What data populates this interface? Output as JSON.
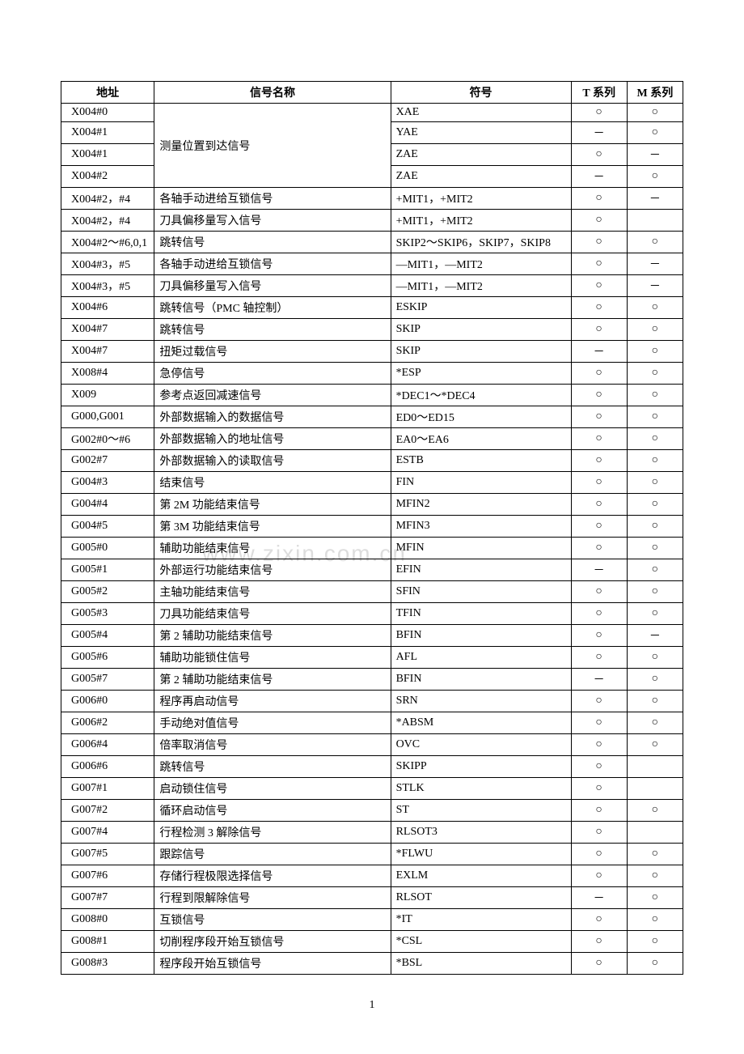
{
  "headers": {
    "addr": "地址",
    "name": "信号名称",
    "symbol": "符号",
    "t": "T 系列",
    "m": "M 系列"
  },
  "watermark": "www.zixin.com.cn",
  "page_number": "1",
  "marks": {
    "circle": "○",
    "dash": "－",
    "blank": ""
  },
  "rows": [
    {
      "addr": "X004#0",
      "name": null,
      "sym": "XAE",
      "t": "circle",
      "m": "circle"
    },
    {
      "addr": "X004#1",
      "name": null,
      "sym": "YAE",
      "t": "dash",
      "m": "circle",
      "name_rowspan": 4,
      "name_text": "测量位置到达信号"
    },
    {
      "addr": "X004#1",
      "name": null,
      "sym": "ZAE",
      "t": "circle",
      "m": "dash"
    },
    {
      "addr": "X004#2",
      "name": null,
      "sym": "ZAE",
      "t": "dash",
      "m": "circle"
    },
    {
      "addr": "X004#2，#4",
      "name": "各轴手动进给互锁信号",
      "sym": "+MIT1，+MIT2",
      "t": "circle",
      "m": "dash"
    },
    {
      "addr": "X004#2，#4",
      "name": "刀具偏移量写入信号",
      "sym": "+MIT1，+MIT2",
      "t": "circle",
      "m": "blank"
    },
    {
      "addr": "X004#2～#6,0,1",
      "name": "跳转信号",
      "sym": "SKIP2～SKIP6，SKIP7，SKIP8",
      "t": "circle",
      "m": "circle"
    },
    {
      "addr": "X004#3，#5",
      "name": "各轴手动进给互锁信号",
      "sym": "—MIT1，—MIT2",
      "t": "circle",
      "m": "dash"
    },
    {
      "addr": "X004#3，#5",
      "name": "刀具偏移量写入信号",
      "sym": "—MIT1，—MIT2",
      "t": "circle",
      "m": "dash"
    },
    {
      "addr": "X004#6",
      "name": "跳转信号（PMC 轴控制）",
      "sym": "ESKIP",
      "t": "circle",
      "m": "circle"
    },
    {
      "addr": "X004#7",
      "name": "跳转信号",
      "sym": "SKIP",
      "t": "circle",
      "m": "circle"
    },
    {
      "addr": "X004#7",
      "name": "扭矩过载信号",
      "sym": "SKIP",
      "t": "dash",
      "m": "circle"
    },
    {
      "addr": "X008#4",
      "name": "急停信号",
      "sym": "*ESP",
      "t": "circle",
      "m": "circle"
    },
    {
      "addr": "X009",
      "name": "参考点返回减速信号",
      "sym": "*DEC1～*DEC4",
      "t": "circle",
      "m": "circle"
    },
    {
      "addr": "G000,G001",
      "name": "外部数据输入的数据信号",
      "sym": "ED0～ED15",
      "t": "circle",
      "m": "circle"
    },
    {
      "addr": "G002#0～#6",
      "name": "外部数据输入的地址信号",
      "sym": "EA0～EA6",
      "t": "circle",
      "m": "circle"
    },
    {
      "addr": "G002#7",
      "name": "外部数据输入的读取信号",
      "sym": "ESTB",
      "t": "circle",
      "m": "circle"
    },
    {
      "addr": "G004#3",
      "name": "结束信号",
      "sym": "FIN",
      "t": "circle",
      "m": "circle"
    },
    {
      "addr": "G004#4",
      "name": "第 2M 功能结束信号",
      "sym": "MFIN2",
      "t": "circle",
      "m": "circle"
    },
    {
      "addr": "G004#5",
      "name": "第 3M 功能结束信号",
      "sym": "MFIN3",
      "t": "circle",
      "m": "circle"
    },
    {
      "addr": "G005#0",
      "name": "辅助功能结束信号",
      "sym": "MFIN",
      "t": "circle",
      "m": "circle"
    },
    {
      "addr": "G005#1",
      "name": "外部运行功能结束信号",
      "sym": "EFIN",
      "t": "dash",
      "m": "circle"
    },
    {
      "addr": "G005#2",
      "name": "主轴功能结束信号",
      "sym": "SFIN",
      "t": "circle",
      "m": "circle"
    },
    {
      "addr": "G005#3",
      "name": "刀具功能结束信号",
      "sym": "TFIN",
      "t": "circle",
      "m": "circle"
    },
    {
      "addr": "G005#4",
      "name": "第 2 辅助功能结束信号",
      "sym": "BFIN",
      "t": "circle",
      "m": "dash"
    },
    {
      "addr": "G005#6",
      "name": "辅助功能锁住信号",
      "sym": "AFL",
      "t": "circle",
      "m": "circle"
    },
    {
      "addr": "G005#7",
      "name": "第 2 辅助功能结束信号",
      "sym": "BFIN",
      "t": "dash",
      "m": "circle"
    },
    {
      "addr": "G006#0",
      "name": "程序再启动信号",
      "sym": "SRN",
      "t": "circle",
      "m": "circle"
    },
    {
      "addr": "G006#2",
      "name": "手动绝对值信号",
      "sym": "*ABSM",
      "t": "circle",
      "m": "circle"
    },
    {
      "addr": "G006#4",
      "name": "倍率取消信号",
      "sym": "OVC",
      "t": "circle",
      "m": "circle"
    },
    {
      "addr": "G006#6",
      "name": "跳转信号",
      "sym": "SKIPP",
      "t": "circle",
      "m": "blank"
    },
    {
      "addr": "G007#1",
      "name": "启动锁住信号",
      "sym": "STLK",
      "t": "circle",
      "m": "blank"
    },
    {
      "addr": "G007#2",
      "name": "循环启动信号",
      "sym": "ST",
      "t": "circle",
      "m": "circle"
    },
    {
      "addr": "G007#4",
      "name": "行程检测 3 解除信号",
      "sym": "RLSOT3",
      "t": "circle",
      "m": "blank"
    },
    {
      "addr": "G007#5",
      "name": "跟踪信号",
      "sym": "*FLWU",
      "t": "circle",
      "m": "circle"
    },
    {
      "addr": "G007#6",
      "name": "存储行程极限选择信号",
      "sym": "EXLM",
      "t": "circle",
      "m": "circle"
    },
    {
      "addr": "G007#7",
      "name": "行程到限解除信号",
      "sym": "RLSOT",
      "t": "dash",
      "m": "circle"
    },
    {
      "addr": "G008#0",
      "name": "互锁信号",
      "sym": "*IT",
      "t": "circle",
      "m": "circle"
    },
    {
      "addr": "G008#1",
      "name": "切削程序段开始互锁信号",
      "sym": "*CSL",
      "t": "circle",
      "m": "circle"
    },
    {
      "addr": "G008#3",
      "name": "程序段开始互锁信号",
      "sym": "*BSL",
      "t": "circle",
      "m": "circle"
    }
  ]
}
